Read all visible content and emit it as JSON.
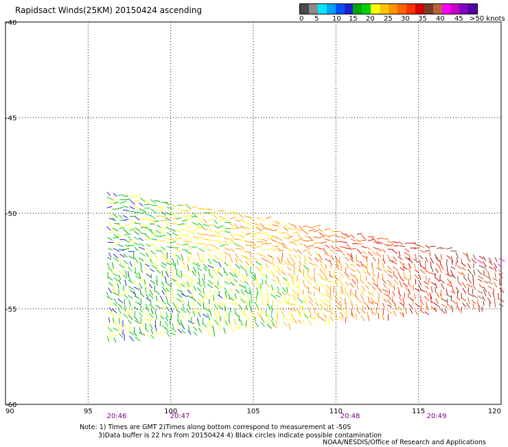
{
  "title": "Rapidsact Winds(25KM) 20150424 ascending",
  "legend": {
    "colors": [
      "#4b4b4b",
      "#8c8c8c",
      "#00e6ff",
      "#00a0ff",
      "#0050ff",
      "#1e1ed2",
      "#00a800",
      "#00d200",
      "#ffff00",
      "#ffc800",
      "#ff9600",
      "#ff6400",
      "#ff3200",
      "#d20000",
      "#783c28",
      "#b4643c",
      "#ff00ff",
      "#c800c8",
      "#8000c0",
      "#5000a0"
    ],
    "ticks": [
      "0",
      "5",
      "10",
      "15",
      "20",
      "25",
      "30",
      "35",
      "40",
      "45",
      ">50 knots"
    ]
  },
  "map": {
    "lon_labels": [
      "90",
      "95",
      "100",
      "105",
      "110",
      "115",
      "120"
    ],
    "lat_labels": [
      "-40",
      "-45",
      "-50",
      "-55",
      "-60"
    ],
    "time_labels": [
      "20:46",
      "20:47",
      "20:48",
      "20:49"
    ]
  },
  "note_line1": "Note: 1) Times are GMT 2)Times along bottom correspond to measurement at -50S",
  "note_line2": "3)Data buffer is 22 hrs from 20150424 4) Black circles indicate possible contamination",
  "credit": "NOAA/NESDIS/Office of Research and Applications"
}
